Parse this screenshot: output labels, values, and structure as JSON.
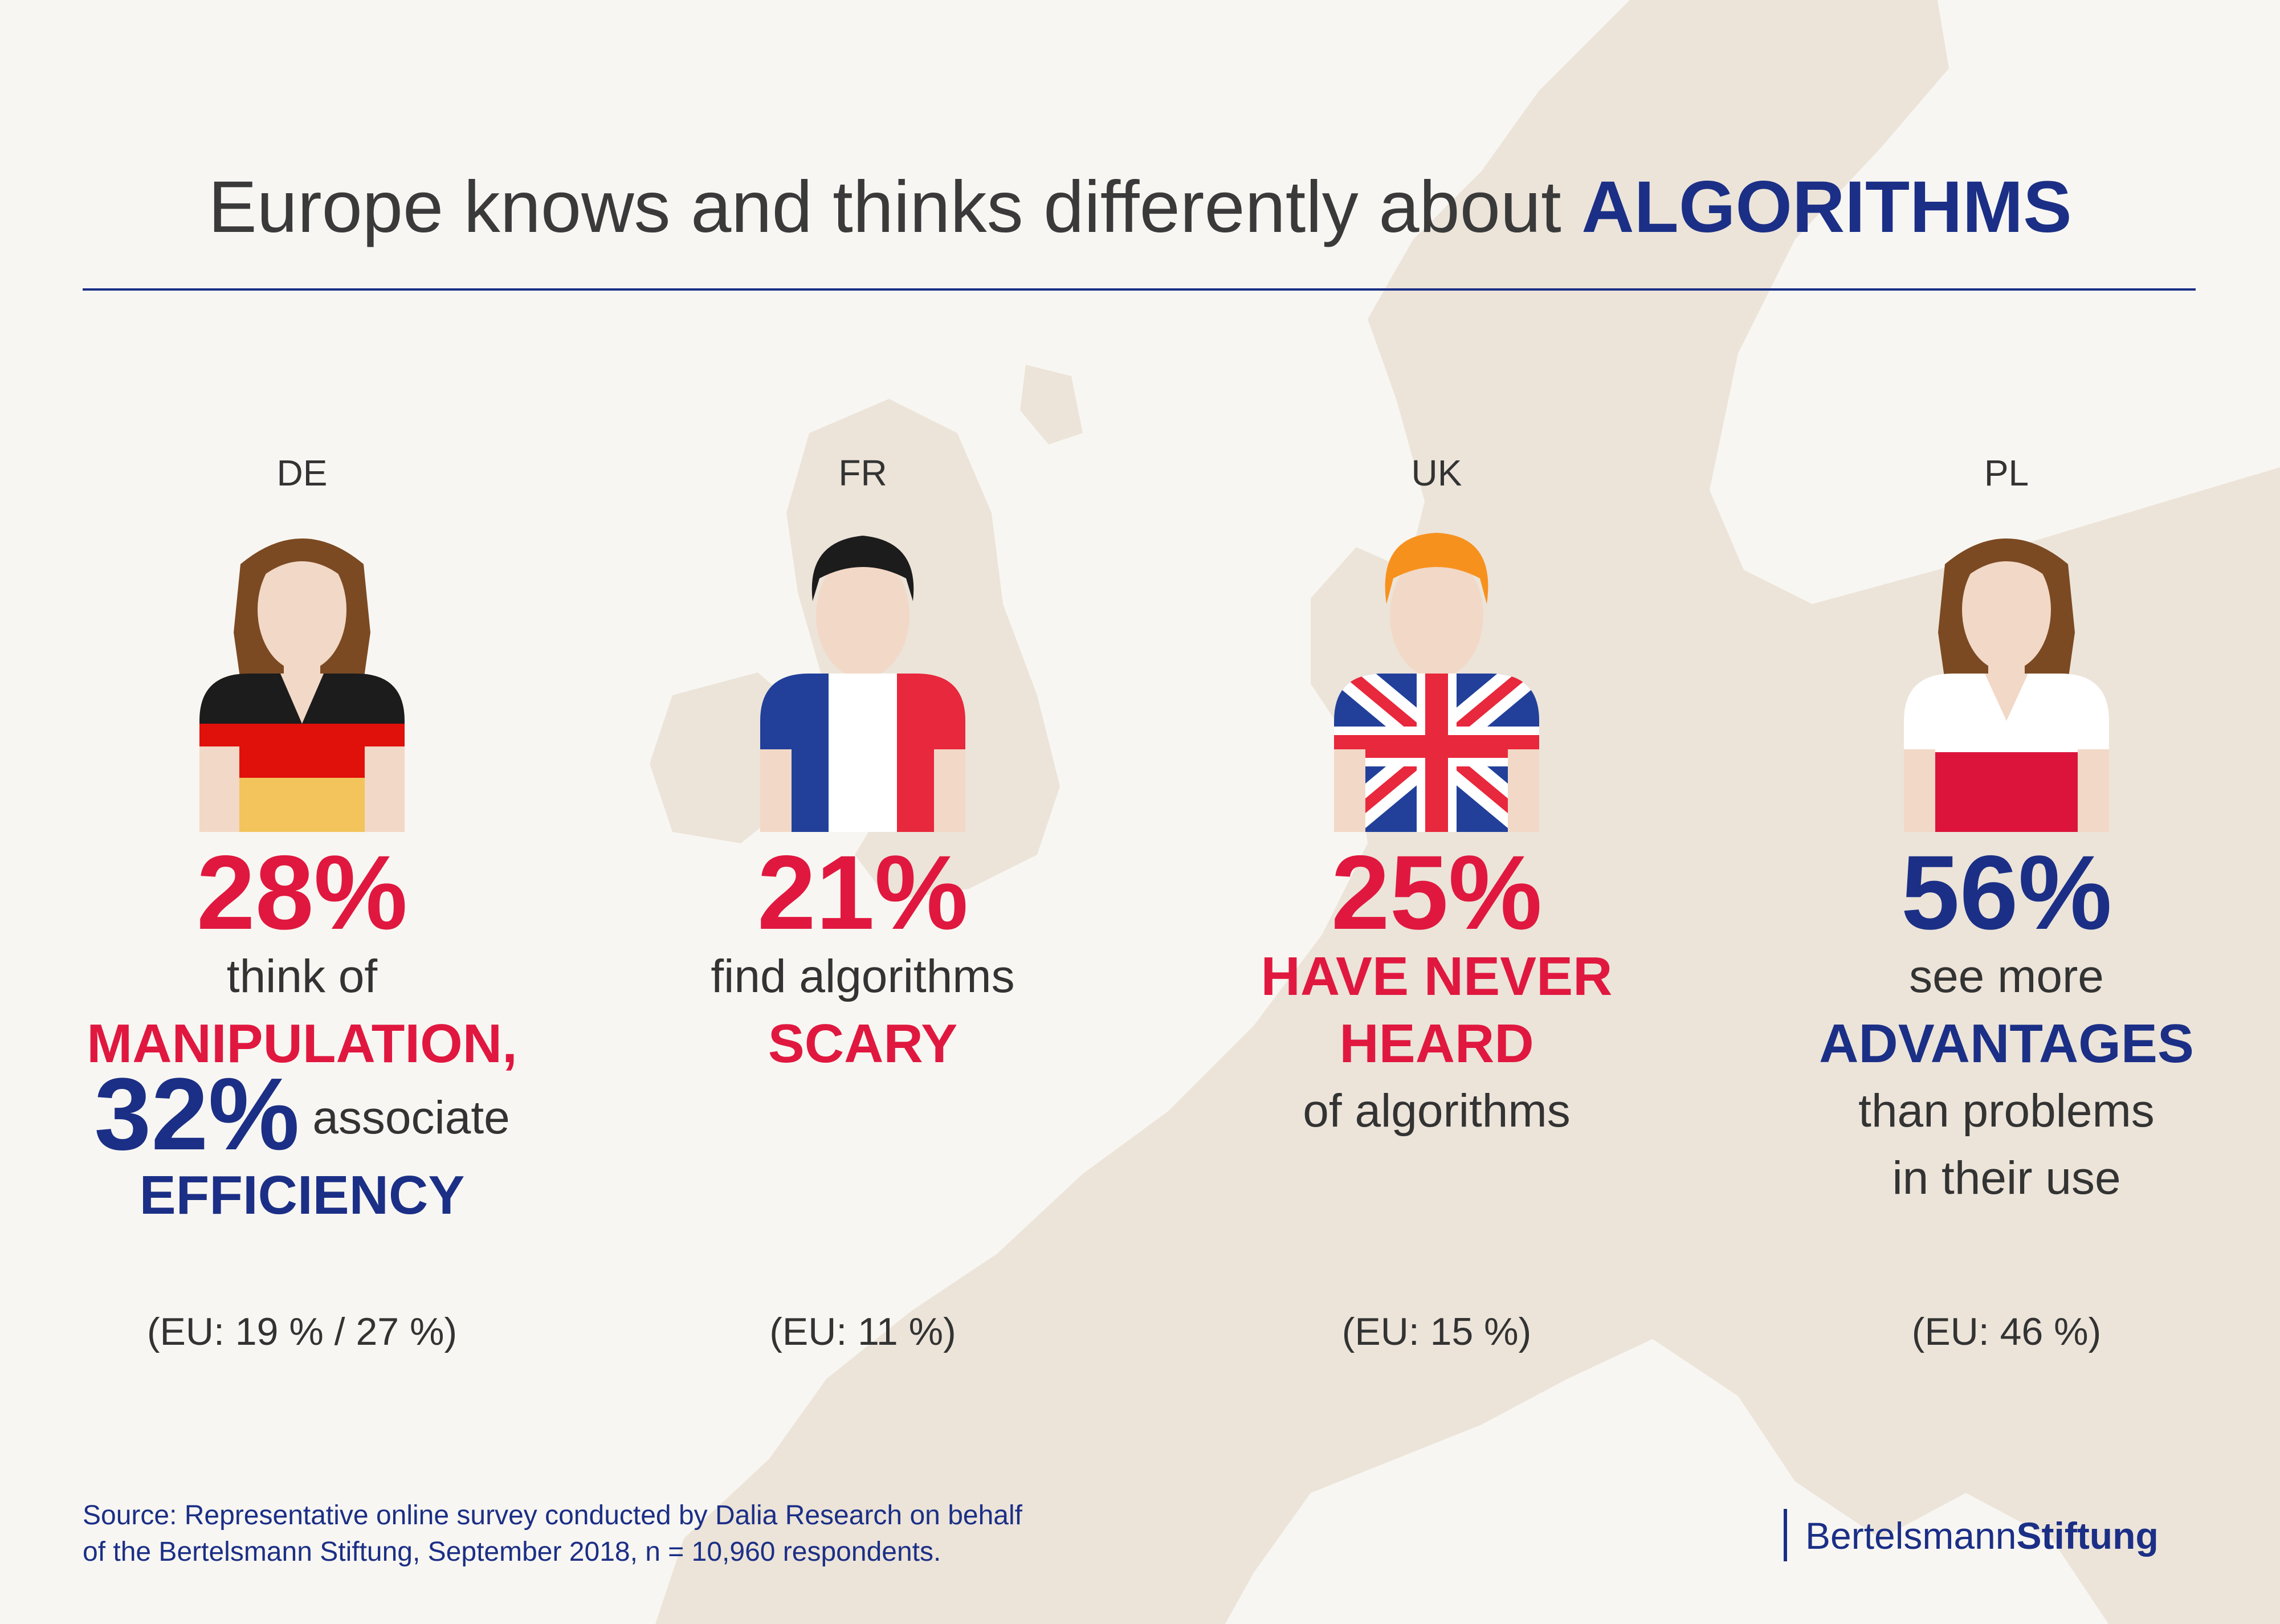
{
  "title": {
    "prefix": "Europe knows and thinks differently about",
    "accent": "ALGORITHMS"
  },
  "colors": {
    "red": "#e0183f",
    "blue": "#1b2f86",
    "text": "#333333",
    "background": "#f8f6f2",
    "map": "#ece4d9"
  },
  "countries": [
    {
      "code": "DE",
      "icon": "person-germany-flag-icon",
      "percent": "28%",
      "line1": "think of",
      "emphasis": "MANIPULATION,",
      "second_percent": "32%",
      "second_text": "associate",
      "second_emphasis": "EFFICIENCY",
      "eu": "(EU: 19 % / 27 %)"
    },
    {
      "code": "FR",
      "icon": "person-france-flag-icon",
      "percent": "21%",
      "line1": "find algorithms",
      "emphasis": "SCARY",
      "eu": "(EU: 11 %)"
    },
    {
      "code": "UK",
      "icon": "person-union-jack-icon",
      "percent": "25%",
      "emphasis1": "HAVE NEVER",
      "emphasis2": "HEARD",
      "line2": "of algorithms",
      "eu": "(EU: 15 %)"
    },
    {
      "code": "PL",
      "icon": "person-poland-flag-icon",
      "percent": "56%",
      "line1": "see more",
      "emphasis": "ADVANTAGES",
      "line2": "than problems",
      "line3": "in their use",
      "eu": "(EU: 46 %)"
    }
  ],
  "source": {
    "line1": "Source: Representative online survey conducted by Dalia Research on behalf",
    "line2": "of the Bertelsmann Stiftung, September 2018, n = 10,960 respondents."
  },
  "logo": {
    "part1": "Bertelsmann",
    "part2": "Stiftung"
  }
}
